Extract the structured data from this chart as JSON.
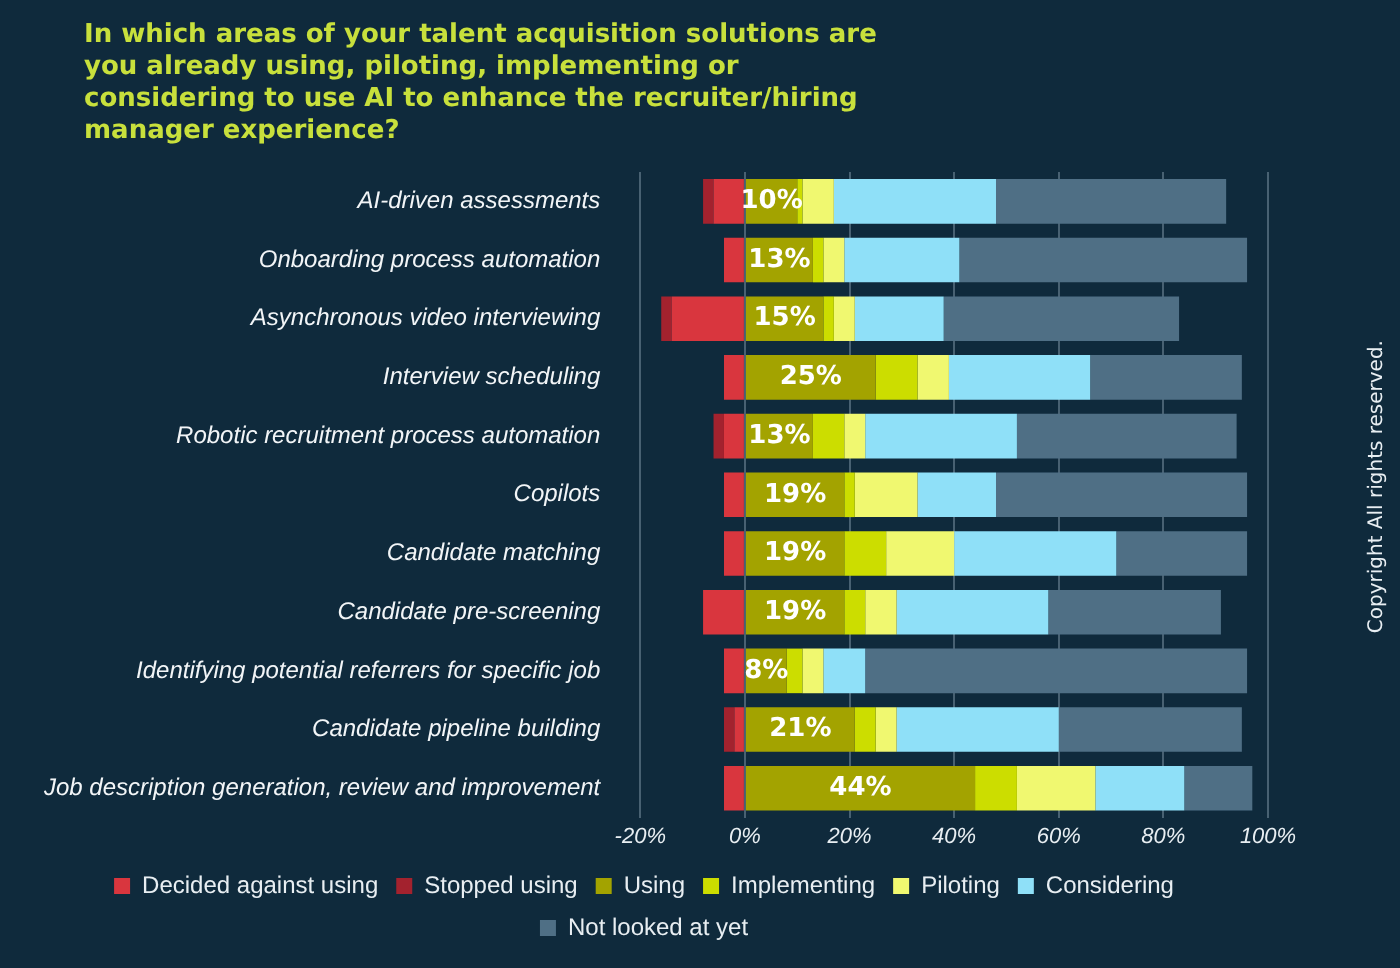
{
  "chart_data": {
    "type": "bar",
    "orientation": "horizontal",
    "stacked": true,
    "title": "In which areas of your talent acquisition solutions are you already using, piloting, implementing or considering to use AI to enhance the recruiter/hiring manager experience?",
    "categories": [
      "AI-driven assessments",
      "Onboarding process automation",
      "Asynchronous video interviewing",
      "Interview scheduling",
      "Robotic recruitment process automation",
      "Copilots",
      "Candidate matching",
      "Candidate pre-screening",
      "Identifying potential referrers for specific job",
      "Candidate pipeline building",
      "Job description generation, review and improvement"
    ],
    "series": [
      {
        "name": "Decided against using",
        "color": "#d9363e",
        "values": [
          -6,
          -4,
          -14,
          -4,
          -4,
          -4,
          -4,
          -8,
          -4,
          -2,
          -4
        ]
      },
      {
        "name": "Stopped using",
        "color": "#a3222e",
        "values": [
          -2,
          null,
          -2,
          null,
          -2,
          null,
          null,
          null,
          null,
          -2,
          null
        ]
      },
      {
        "name": "Using",
        "color": "#a3a300",
        "values": [
          10,
          13,
          15,
          25,
          13,
          19,
          19,
          19,
          8,
          21,
          44
        ],
        "value_labels": [
          "10%",
          "13%",
          "15%",
          "25%",
          "13%",
          "19%",
          "19%",
          "19%",
          "8%",
          "21%",
          "44%"
        ]
      },
      {
        "name": "Implementing",
        "color": "#ccdd00",
        "values": [
          1,
          2,
          2,
          8,
          6,
          2,
          8,
          4,
          3,
          4,
          8
        ]
      },
      {
        "name": "Piloting",
        "color": "#f0f870",
        "values": [
          6,
          4,
          4,
          6,
          4,
          12,
          13,
          6,
          4,
          4,
          15
        ]
      },
      {
        "name": "Considering",
        "color": "#8fe0f8",
        "values": [
          31,
          22,
          17,
          27,
          29,
          15,
          31,
          29,
          8,
          31,
          17
        ]
      },
      {
        "name": "Not looked at yet",
        "color": "#4f6f85",
        "values": [
          44,
          55,
          45,
          29,
          42,
          48,
          25,
          33,
          73,
          35,
          13
        ]
      }
    ],
    "xlim": [
      -20,
      100
    ],
    "xticks": [
      {
        "value": -20,
        "label": "-20%"
      },
      {
        "value": 0,
        "label": "0%"
      },
      {
        "value": 20,
        "label": "20%"
      },
      {
        "value": 40,
        "label": "40%"
      },
      {
        "value": 60,
        "label": "60%"
      },
      {
        "value": 80,
        "label": "80%"
      },
      {
        "value": 100,
        "label": "100%"
      }
    ],
    "grid": "x",
    "legend": "bottom",
    "annotations": [
      "Copyright All rights reserved."
    ]
  }
}
